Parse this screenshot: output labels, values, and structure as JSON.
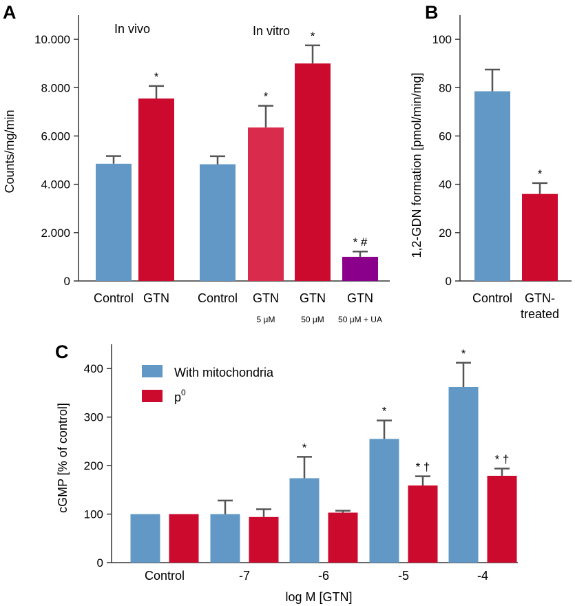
{
  "colors": {
    "blue": "#6198C6",
    "red": "#CC0A2E",
    "pink": "#D92B4B",
    "purple": "#8B008B",
    "axis": "#333333",
    "error": "#555555"
  },
  "chart_data": [
    {
      "panel": "A",
      "type": "bar",
      "ylabel": "Counts/mg/min",
      "ylim": [
        0,
        11000
      ],
      "yticks": [
        0,
        2000,
        4000,
        6000,
        8000,
        10000
      ],
      "ytick_labels": [
        "0",
        "2.000",
        "4.000",
        "6.000",
        "8.000",
        "10.000"
      ],
      "group_labels": [
        "In vivo",
        "In vitro"
      ],
      "bars": [
        {
          "label": "Control",
          "sub": "",
          "value": 4850,
          "error": 320,
          "color": "blue",
          "annot": ""
        },
        {
          "label": "GTN",
          "sub": "",
          "value": 7550,
          "error": 520,
          "color": "red",
          "annot": "*"
        },
        {
          "label": "Control",
          "sub": "",
          "value": 4830,
          "error": 330,
          "color": "blue",
          "annot": ""
        },
        {
          "label": "GTN",
          "sub": "5 μM",
          "value": 6350,
          "error": 900,
          "color": "pink",
          "annot": "*"
        },
        {
          "label": "GTN",
          "sub": "50 μM",
          "value": 9000,
          "error": 750,
          "color": "red",
          "annot": "*"
        },
        {
          "label": "GTN",
          "sub": "50 μM + UA",
          "value": 1000,
          "error": 220,
          "color": "purple",
          "annot": "* #"
        }
      ]
    },
    {
      "panel": "B",
      "type": "bar",
      "ylabel": "1,2-GDN formation [pmol/min/mg]",
      "ylim": [
        0,
        110
      ],
      "yticks": [
        0,
        20,
        40,
        60,
        80,
        100
      ],
      "ytick_labels": [
        "0",
        "20",
        "40",
        "60",
        "80",
        "100"
      ],
      "bars": [
        {
          "label": "Control",
          "label2": "",
          "value": 78.5,
          "error": 9,
          "color": "blue",
          "annot": ""
        },
        {
          "label": "GTN-",
          "label2": "treated",
          "value": 36,
          "error": 4.5,
          "color": "red",
          "annot": "*"
        }
      ]
    },
    {
      "panel": "C",
      "type": "bar",
      "xlabel": "log M [GTN]",
      "ylabel": "cGMP [% of control]",
      "ylim": [
        0,
        450
      ],
      "yticks": [
        0,
        100,
        200,
        300,
        400
      ],
      "ytick_labels": [
        "0",
        "100",
        "200",
        "300",
        "400"
      ],
      "categories": [
        "Control",
        "-7",
        "-6",
        "-5",
        "-4"
      ],
      "series": [
        {
          "name": "With mitochondria",
          "name_sup": "",
          "color": "blue",
          "values": [
            100,
            100,
            174,
            255,
            362
          ],
          "errors": [
            0,
            28,
            44,
            38,
            50
          ],
          "annots": [
            "",
            "",
            "*",
            "*",
            "*"
          ]
        },
        {
          "name": "p",
          "name_sup": "0",
          "color": "red",
          "values": [
            100,
            94,
            103,
            159,
            179
          ],
          "errors": [
            0,
            16,
            4,
            19,
            15
          ],
          "annots": [
            "",
            "",
            "",
            "* †",
            "* †"
          ]
        }
      ]
    }
  ]
}
